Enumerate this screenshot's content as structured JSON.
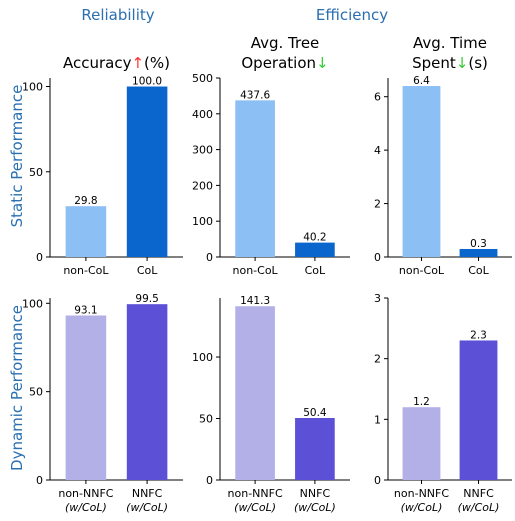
{
  "headers": {
    "left": "Reliability",
    "right": "Efficiency"
  },
  "row_labels": {
    "top": "Static Performance",
    "bottom": "Dynamic Performance"
  },
  "colors": {
    "static_light": "#8cc0f5",
    "static_dark": "#0a66cc",
    "dynamic_light": "#b3b0e8",
    "dynamic_dark": "#5b50d6",
    "header_blue": "#2a6fb0",
    "arrow_up": "#ff3030",
    "arrow_down": "#33cc33"
  },
  "chart_data": [
    {
      "type": "bar",
      "title": {
        "main": "Accuracy",
        "arrow": "↑",
        "suffix": "(%)"
      },
      "categories": [
        {
          "line1": "non-CoL",
          "line2": ""
        },
        {
          "line1": "CoL",
          "line2": ""
        }
      ],
      "values": [
        29.8,
        100.0
      ],
      "labels": [
        "29.8",
        "100.0"
      ],
      "ylim": [
        0,
        105
      ],
      "yticks": [
        0,
        50,
        100
      ],
      "colors": [
        "static_light",
        "static_dark"
      ]
    },
    {
      "type": "bar",
      "title": {
        "line1": "Avg. Tree",
        "main": "Operation",
        "arrow": "↓",
        "suffix": ""
      },
      "categories": [
        {
          "line1": "non-CoL",
          "line2": ""
        },
        {
          "line1": "CoL",
          "line2": ""
        }
      ],
      "values": [
        437.6,
        40.2
      ],
      "labels": [
        "437.6",
        "40.2"
      ],
      "ylim": [
        0,
        500
      ],
      "yticks": [
        0,
        100,
        200,
        300,
        400,
        500
      ],
      "colors": [
        "static_light",
        "static_dark"
      ]
    },
    {
      "type": "bar",
      "title": {
        "line1": "Avg. Time",
        "main": "Spent",
        "arrow": "↓",
        "suffix": "(s)"
      },
      "categories": [
        {
          "line1": "non-CoL",
          "line2": ""
        },
        {
          "line1": "CoL",
          "line2": ""
        }
      ],
      "values": [
        6.4,
        0.3
      ],
      "labels": [
        "6.4",
        "0.3"
      ],
      "ylim": [
        0,
        6.7
      ],
      "yticks": [
        0,
        2,
        4,
        6
      ],
      "colors": [
        "static_light",
        "static_dark"
      ]
    },
    {
      "type": "bar",
      "categories": [
        {
          "line1": "non-NNFC",
          "line2": "(w/CoL)"
        },
        {
          "line1": "NNFC",
          "line2": "(w/CoL)"
        }
      ],
      "values": [
        93.1,
        99.5
      ],
      "labels": [
        "93.1",
        "99.5"
      ],
      "ylim": [
        0,
        103
      ],
      "yticks": [
        0,
        50,
        100
      ],
      "colors": [
        "dynamic_light",
        "dynamic_dark"
      ]
    },
    {
      "type": "bar",
      "categories": [
        {
          "line1": "non-NNFC",
          "line2": "(w/CoL)"
        },
        {
          "line1": "NNFC",
          "line2": "(w/CoL)"
        }
      ],
      "values": [
        141.3,
        50.4
      ],
      "labels": [
        "141.3",
        "50.4"
      ],
      "ylim": [
        0,
        148
      ],
      "yticks": [
        0,
        50,
        100
      ],
      "colors": [
        "dynamic_light",
        "dynamic_dark"
      ]
    },
    {
      "type": "bar",
      "categories": [
        {
          "line1": "non-NNFC",
          "line2": "(w/CoL)"
        },
        {
          "line1": "NNFC",
          "line2": "(w/CoL)"
        }
      ],
      "values": [
        1.2,
        2.3
      ],
      "labels": [
        "1.2",
        "2.3"
      ],
      "ylim": [
        0,
        3
      ],
      "yticks": [
        0,
        1,
        2,
        3
      ],
      "colors": [
        "dynamic_light",
        "dynamic_dark"
      ]
    }
  ]
}
